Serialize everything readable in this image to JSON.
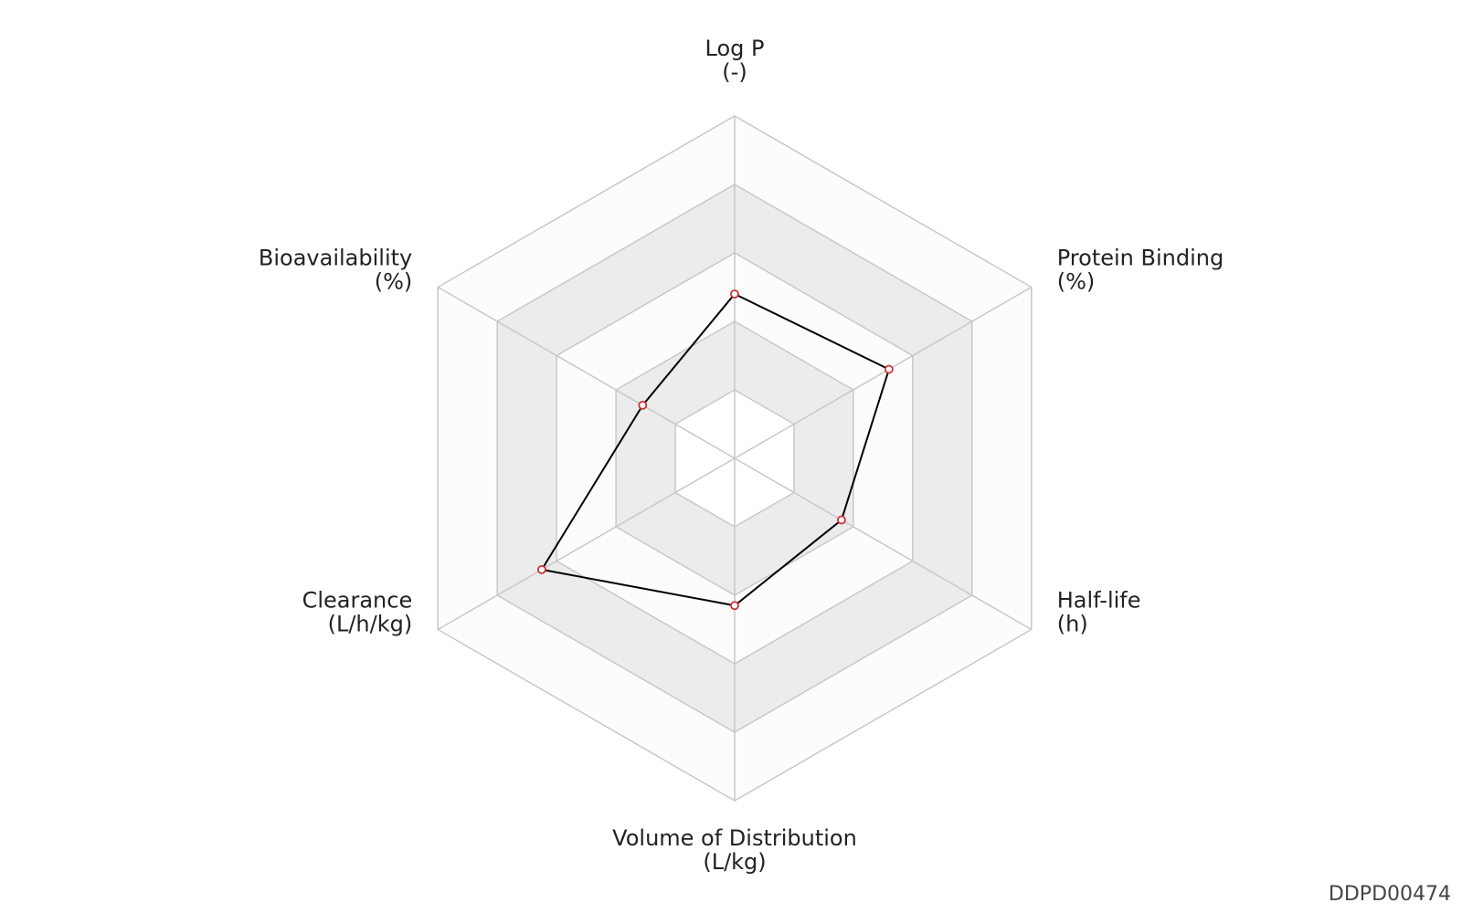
{
  "chart_data": {
    "type": "radar",
    "axes": [
      {
        "name": "Log P",
        "unit": "(-)"
      },
      {
        "name": "Protein Binding",
        "unit": "(%)"
      },
      {
        "name": "Half-life",
        "unit": "(h)"
      },
      {
        "name": "Volume of Distribution",
        "unit": "(L/kg)"
      },
      {
        "name": "Clearance",
        "unit": "(L/h/kg)"
      },
      {
        "name": "Bioavailability",
        "unit": "(%)"
      }
    ],
    "values": [
      0.48,
      0.52,
      0.36,
      0.43,
      0.65,
      0.31
    ],
    "color": "#000000",
    "marker_color": "#cc3333",
    "rlim": [
      0,
      1
    ],
    "rticks": [
      0.2,
      0.4,
      0.6,
      0.8,
      1
    ],
    "ring_colors": [
      "#ffffff",
      "#ececec",
      "#fcfcfc",
      "#ececec",
      "#fcfcfc"
    ],
    "grid_color": "#c8c8c8",
    "watermark": "DDPD00474"
  }
}
